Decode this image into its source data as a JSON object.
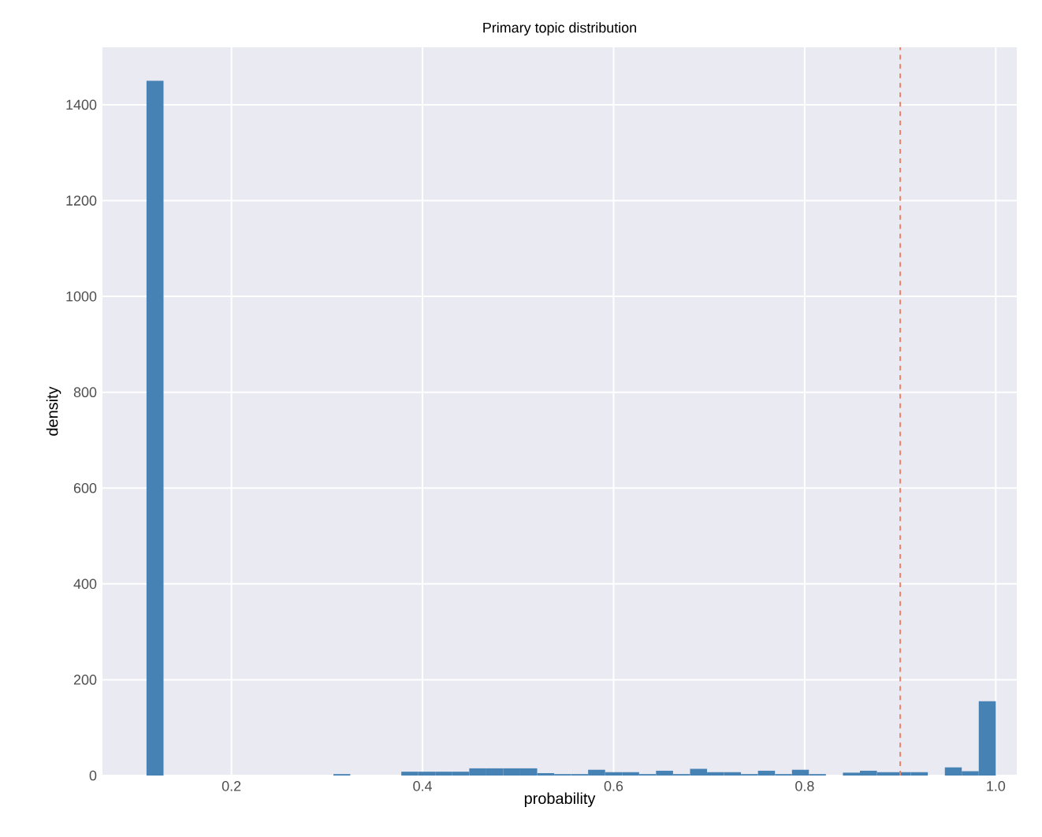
{
  "chart_data": {
    "type": "histogram",
    "title": "Primary topic distribution",
    "xlabel": "probability",
    "ylabel": "density",
    "bins": [
      0.1111,
      0.1289,
      0.1467,
      0.1644,
      0.1822,
      0.2,
      0.2178,
      0.2356,
      0.2533,
      0.2711,
      0.2889,
      0.3067,
      0.3244,
      0.3422,
      0.36,
      0.3778,
      0.3956,
      0.4133,
      0.4311,
      0.4489,
      0.4667,
      0.4844,
      0.5022,
      0.52,
      0.5378,
      0.5556,
      0.5733,
      0.5911,
      0.6089,
      0.6267,
      0.6444,
      0.6622,
      0.68,
      0.6978,
      0.7156,
      0.7333,
      0.7511,
      0.7689,
      0.7867,
      0.8044,
      0.8222,
      0.84,
      0.8578,
      0.8756,
      0.8933,
      0.9111,
      0.9289,
      0.9467,
      0.9644,
      0.9822,
      1.0
    ],
    "values": [
      1450,
      0,
      0,
      0,
      0,
      0,
      0,
      0,
      0,
      0,
      0,
      3,
      0,
      0,
      0,
      8,
      8,
      8,
      8,
      15,
      15,
      15,
      15,
      5,
      3,
      3,
      12,
      7,
      7,
      3,
      10,
      3,
      14,
      7,
      7,
      3,
      10,
      3,
      12,
      3,
      0,
      6,
      10,
      7,
      7,
      7,
      0,
      17,
      9,
      155
    ],
    "color": "#4682b4",
    "xlim": [
      0.065,
      1.022
    ],
    "ylim": [
      0,
      1520
    ],
    "xticks": [
      0.2,
      0.4,
      0.6,
      0.8,
      {
        "value": 1.0,
        "label": "1.0"
      }
    ],
    "yticks": [
      0,
      200,
      400,
      600,
      800,
      1000,
      1200,
      1400
    ],
    "ref_lines": [
      {
        "axis": "x",
        "value": 0.9,
        "color": "#e8836b",
        "line_style": "dashed"
      }
    ],
    "grid": true
  }
}
